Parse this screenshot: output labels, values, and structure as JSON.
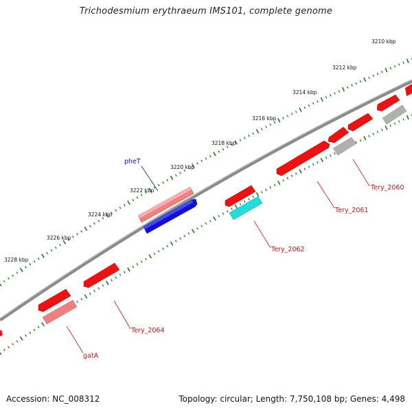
{
  "title": "Trichodesmium erythraeum IMS101, complete genome",
  "footer": {
    "accession": "Accession: NC_008312",
    "summary": "Topology: circular; Length: 7,750,108 bp; Genes: 4,498"
  },
  "ruler_labels": [
    "3210 kbp",
    "3212 kbp",
    "3214 kbp",
    "3216 kbp",
    "3218 kbp",
    "3220 kbp",
    "3222 kbp",
    "3224 kbp",
    "3226 kbp",
    "3228 kbp"
  ],
  "gene_labels": [
    "pheT",
    "Tery_2060",
    "Tery_2061",
    "Tery_2062",
    "Tery_2064",
    "gatA"
  ],
  "colors": {
    "backbone": "#808080",
    "tick": "#1a7a1a",
    "forward_label": "#1010cc",
    "reverse_label": "#cc1010",
    "gene_red": "#ee1111",
    "gene_pink": "#f08080",
    "gene_blue": "#1010dd",
    "gene_cyan": "#22dddd",
    "gene_gray": "#b0b0b0"
  }
}
